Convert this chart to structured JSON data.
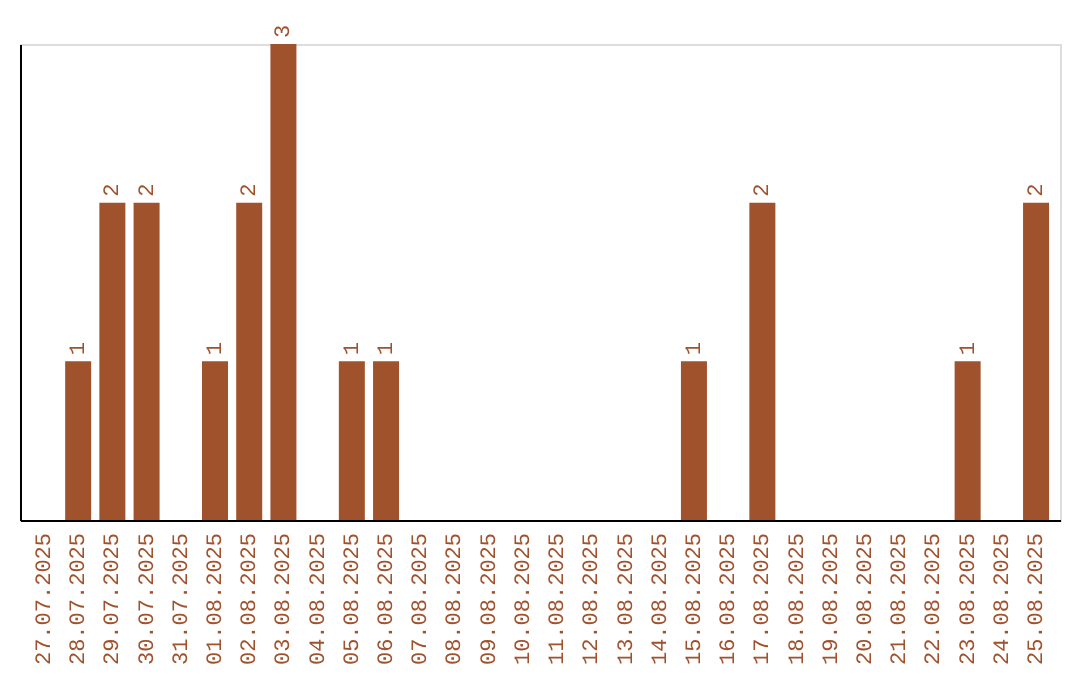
{
  "chart_data": {
    "type": "bar",
    "categories": [
      "27.07.2025",
      "28.07.2025",
      "29.07.2025",
      "30.07.2025",
      "31.07.2025",
      "01.08.2025",
      "02.08.2025",
      "03.08.2025",
      "04.08.2025",
      "05.08.2025",
      "06.08.2025",
      "07.08.2025",
      "08.08.2025",
      "09.08.2025",
      "10.08.2025",
      "11.08.2025",
      "12.08.2025",
      "13.08.2025",
      "14.08.2025",
      "15.08.2025",
      "16.08.2025",
      "17.08.2025",
      "18.08.2025",
      "19.08.2025",
      "20.08.2025",
      "21.08.2025",
      "22.08.2025",
      "23.08.2025",
      "24.08.2025",
      "25.08.2025"
    ],
    "values": [
      0,
      1,
      2,
      2,
      0,
      1,
      2,
      3,
      0,
      1,
      1,
      0,
      0,
      0,
      0,
      0,
      0,
      0,
      0,
      1,
      0,
      2,
      0,
      0,
      0,
      0,
      0,
      1,
      0,
      2
    ],
    "value_labels": [
      null,
      "1",
      "2",
      "2",
      null,
      "1",
      "2",
      "3",
      null,
      "1",
      "1",
      null,
      null,
      null,
      null,
      null,
      null,
      null,
      null,
      "1",
      null,
      "2",
      null,
      null,
      null,
      null,
      null,
      "1",
      null,
      "2"
    ],
    "color": "#a0522d",
    "tick_labels": "x"
  }
}
